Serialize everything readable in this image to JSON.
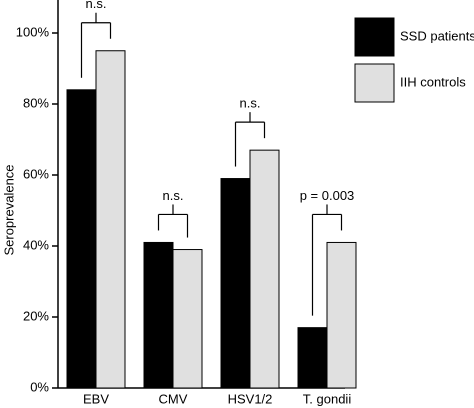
{
  "chart_data": {
    "type": "bar",
    "y_label": "Seroprevalence",
    "categories": [
      "EBV",
      "CMV",
      "HSV1/2",
      "T. gondii"
    ],
    "series": [
      {
        "name": "SSD patients",
        "color": "#000000",
        "values": [
          84,
          41,
          59,
          17
        ]
      },
      {
        "name": "IIH controls",
        "color": "#e0e0e0",
        "values": [
          95,
          39,
          67,
          41
        ]
      }
    ],
    "annotations": [
      "n.s.",
      "n.s.",
      "n.s.",
      "p = 0.003"
    ],
    "ylim": [
      0,
      100
    ],
    "yticks": [
      {
        "value": 0,
        "label": "0%"
      },
      {
        "value": 20,
        "label": "20%"
      },
      {
        "value": 40,
        "label": "40%"
      },
      {
        "value": 60,
        "label": "60%"
      },
      {
        "value": 80,
        "label": "80%"
      },
      {
        "value": 100,
        "label": "100%"
      }
    ],
    "legend": "top-right"
  }
}
